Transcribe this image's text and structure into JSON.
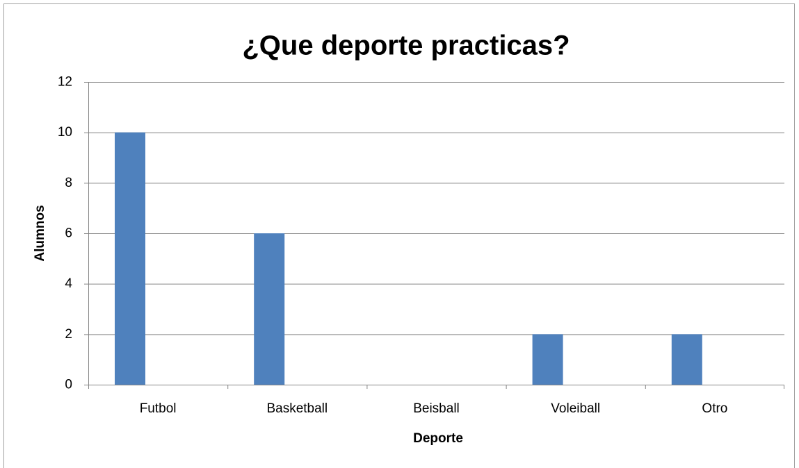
{
  "chart_data": {
    "type": "bar",
    "title": "¿Que deporte practicas?",
    "x_label": "Deporte",
    "y_label": "Alumnos",
    "categories": [
      "Futbol",
      "Basketball",
      "Beisball",
      "Voleiball",
      "Otro"
    ],
    "values": [
      10,
      6,
      0,
      2,
      2
    ],
    "color": "#4f81bd",
    "ylim": [
      0,
      12
    ],
    "yticks": [
      0,
      2,
      4,
      6,
      8,
      10,
      12
    ],
    "grid": true
  }
}
